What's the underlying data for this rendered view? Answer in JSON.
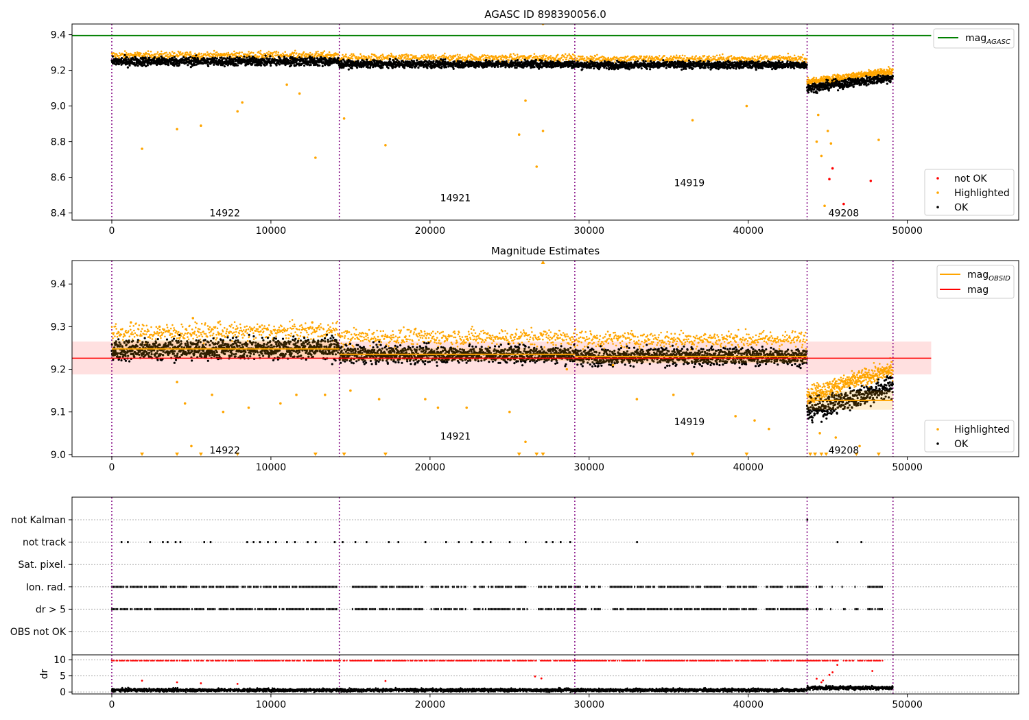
{
  "chart_data": [
    {
      "type": "scatter",
      "title": "AGASC ID 898390056.0",
      "xlim": [
        -2500,
        57000
      ],
      "ylim": [
        8.36,
        9.46
      ],
      "xticks": [
        0,
        10000,
        20000,
        30000,
        40000,
        50000
      ],
      "xtick_labels": [
        "0",
        "10000",
        "20000",
        "30000",
        "40000",
        "50000"
      ],
      "yticks": [
        8.4,
        8.6,
        8.8,
        9.0,
        9.2,
        9.4
      ],
      "ytick_labels": [
        "8.4",
        "8.6",
        "8.8",
        "9.0",
        "9.2",
        "9.4"
      ],
      "obsid_boundaries": [
        0,
        14300,
        29100,
        43700,
        49100
      ],
      "obsid_labels": [
        {
          "text": "14922",
          "x": 7100,
          "y": 8.4
        },
        {
          "text": "14921",
          "x": 21600,
          "y": 8.485
        },
        {
          "text": "14919",
          "x": 36300,
          "y": 8.57
        },
        {
          "text": "49208",
          "x": 46000,
          "y": 8.4
        }
      ],
      "lines": [
        {
          "name": "mag_AGASC",
          "y": 9.395,
          "x": [
            -2500,
            51500
          ],
          "color": "#008000"
        }
      ],
      "series": [
        {
          "name": "OK",
          "color": "#000000",
          "segments": [
            {
              "x": [
                0,
                14300
              ],
              "y": [
                9.25,
                9.25
              ],
              "spread": 0.025
            },
            {
              "x": [
                14300,
                29100
              ],
              "y": [
                9.235,
                9.235
              ],
              "spread": 0.02
            },
            {
              "x": [
                29100,
                43700
              ],
              "y": [
                9.23,
                9.23
              ],
              "spread": 0.02
            },
            {
              "x": [
                43700,
                49100
              ],
              "y": [
                9.1,
                9.16
              ],
              "spread": 0.025
            }
          ]
        },
        {
          "name": "Highlighted",
          "color": "#FFA500",
          "points": [
            [
              1900,
              8.76
            ],
            [
              4100,
              8.87
            ],
            [
              5600,
              8.89
            ],
            [
              7900,
              8.97
            ],
            [
              12800,
              8.71
            ],
            [
              14600,
              8.93
            ],
            [
              17200,
              8.78
            ],
            [
              25600,
              8.84
            ],
            [
              26700,
              8.66
            ],
            [
              27100,
              8.86
            ],
            [
              27100,
              9.46
            ],
            [
              36500,
              8.92
            ],
            [
              39900,
              9.0
            ],
            [
              44800,
              8.44
            ],
            [
              48200,
              8.81
            ],
            [
              44300,
              8.8
            ],
            [
              44600,
              8.72
            ],
            [
              45000,
              8.86
            ],
            [
              44400,
              8.95
            ],
            [
              45200,
              8.79
            ],
            [
              8200,
              9.02
            ],
            [
              11000,
              9.12
            ],
            [
              11800,
              9.07
            ],
            [
              26000,
              9.03
            ]
          ]
        },
        {
          "name": "not OK",
          "color": "#FF0000",
          "points": [
            [
              45300,
              8.65
            ],
            [
              45100,
              8.59
            ],
            [
              46000,
              8.45
            ],
            [
              47700,
              8.58
            ]
          ]
        }
      ],
      "legend": {
        "placement": "right",
        "entries": [
          "mag_AGASC",
          "not OK",
          "Highlighted",
          "OK"
        ]
      }
    },
    {
      "type": "scatter",
      "title": "Magnitude Estimates",
      "xlim": [
        -2500,
        57000
      ],
      "ylim": [
        8.995,
        9.455
      ],
      "xticks": [
        0,
        10000,
        20000,
        30000,
        40000,
        50000
      ],
      "xtick_labels": [
        "0",
        "10000",
        "20000",
        "30000",
        "40000",
        "50000"
      ],
      "yticks": [
        9.0,
        9.1,
        9.2,
        9.3,
        9.4
      ],
      "ytick_labels": [
        "9.0",
        "9.1",
        "9.2",
        "9.3",
        "9.4"
      ],
      "obsid_boundaries": [
        0,
        14300,
        29100,
        43700,
        49100
      ],
      "obsid_labels": [
        {
          "text": "14922",
          "x": 7100,
          "y": 9.01
        },
        {
          "text": "14921",
          "x": 21600,
          "y": 9.043
        },
        {
          "text": "14919",
          "x": 36300,
          "y": 9.077
        },
        {
          "text": "49208",
          "x": 46000,
          "y": 9.01
        }
      ],
      "bands": [
        {
          "name": "mag",
          "y": 9.226,
          "low": 9.188,
          "high": 9.265,
          "x": [
            -2500,
            51500
          ],
          "color": "#FF0000"
        }
      ],
      "obsid_mags": [
        {
          "x": [
            0,
            14300
          ],
          "y": 9.248,
          "low": 9.228,
          "high": 9.268
        },
        {
          "x": [
            14300,
            29100
          ],
          "y": 9.235,
          "low": 9.22,
          "high": 9.25
        },
        {
          "x": [
            29100,
            43700
          ],
          "y": 9.23,
          "low": 9.215,
          "high": 9.245
        },
        {
          "x": [
            43700,
            49100
          ],
          "y": 9.127,
          "low": 9.105,
          "high": 9.15
        }
      ],
      "series": [
        {
          "name": "OK",
          "color": "#000000",
          "segments": [
            {
              "x": [
                0,
                14300
              ],
              "y": [
                9.245,
                9.25
              ],
              "spread": 0.025
            },
            {
              "x": [
                14300,
                29100
              ],
              "y": [
                9.235,
                9.235
              ],
              "spread": 0.02
            },
            {
              "x": [
                29100,
                43700
              ],
              "y": [
                9.23,
                9.23
              ],
              "spread": 0.02
            },
            {
              "x": [
                43700,
                49100
              ],
              "y": [
                9.1,
                9.16
              ],
              "spread": 0.025
            }
          ]
        },
        {
          "name": "Highlighted",
          "color": "#FFA500",
          "points": [
            [
              1200,
              9.31
            ],
            [
              3000,
              9.3
            ],
            [
              5100,
              9.32
            ],
            [
              6700,
              9.31
            ],
            [
              9300,
              9.3
            ],
            [
              12600,
              9.31
            ],
            [
              4100,
              9.17
            ],
            [
              4600,
              9.12
            ],
            [
              5000,
              9.02
            ],
            [
              6300,
              9.14
            ],
            [
              7000,
              9.1
            ],
            [
              8600,
              9.11
            ],
            [
              10600,
              9.12
            ],
            [
              11600,
              9.14
            ],
            [
              13400,
              9.14
            ],
            [
              15000,
              9.15
            ],
            [
              16800,
              9.13
            ],
            [
              19700,
              9.13
            ],
            [
              20500,
              9.11
            ],
            [
              22300,
              9.11
            ],
            [
              25000,
              9.1
            ],
            [
              26000,
              9.03
            ],
            [
              28600,
              9.2
            ],
            [
              31500,
              9.21
            ],
            [
              33000,
              9.13
            ],
            [
              35300,
              9.14
            ],
            [
              39200,
              9.09
            ],
            [
              40400,
              9.08
            ],
            [
              41300,
              9.06
            ],
            [
              44500,
              9.05
            ],
            [
              45500,
              9.04
            ],
            [
              47000,
              9.02
            ],
            [
              27100,
              9.45
            ]
          ]
        }
      ],
      "below_axis_markers": [
        1900,
        4100,
        5600,
        7900,
        12800,
        14600,
        17200,
        25600,
        26700,
        27100,
        36500,
        39900,
        43900,
        44200,
        44600,
        44900,
        46800,
        48200
      ],
      "legend": {
        "placement": "right",
        "entries": [
          "mag_OBSID",
          "mag",
          "Highlighted",
          "OK"
        ]
      }
    },
    {
      "type": "scatter",
      "title": "",
      "xlim": [
        -2500,
        57000
      ],
      "categories": [
        "not Kalman",
        "not track",
        "Sat. pixel.",
        "Ion. rad.",
        "dr > 5",
        "OBS not OK"
      ],
      "obsid_boundaries": [
        0,
        14300,
        29100,
        43700,
        49100
      ],
      "flags": {
        "not Kalman": [
          43700
        ],
        "not track": [
          600,
          1000,
          2400,
          3200,
          3500,
          4000,
          4300,
          5800,
          6200,
          8500,
          8900,
          9300,
          9800,
          10300,
          11000,
          11500,
          12300,
          12800,
          14000,
          14500,
          15300,
          16000,
          17400,
          18000,
          19700,
          21000,
          21800,
          22600,
          23300,
          23800,
          25000,
          26000,
          27300,
          27700,
          28200,
          28800,
          33000,
          45600,
          47100
        ],
        "Sat. pixel.": [],
        "Ion. rad.": {
          "from": 0,
          "to": 48500,
          "gaps": [
            14400,
            14800,
            19800,
            22500,
            26500,
            31000,
            40800,
            44000,
            44900,
            45600,
            46400,
            47200
          ]
        },
        "dr > 5": {
          "from": 0,
          "to": 48500,
          "gaps": [
            14400,
            14800,
            19800,
            22500,
            26500,
            31000,
            40800,
            44000,
            44900,
            45600,
            46400,
            47200
          ]
        },
        "OBS not OK": []
      }
    },
    {
      "type": "scatter",
      "title": "",
      "xlim": [
        -2500,
        57000
      ],
      "ylim": [
        -0.6,
        11.5
      ],
      "xticks": [
        0,
        10000,
        20000,
        30000,
        40000,
        50000
      ],
      "xtick_labels": [
        "0",
        "10000",
        "20000",
        "30000",
        "40000",
        "50000"
      ],
      "yticks": [
        0,
        5,
        10
      ],
      "ytick_labels": [
        "0",
        "5",
        "10"
      ],
      "ylabel": "dr",
      "obsid_boundaries": [
        0,
        14300,
        29100,
        43700,
        49100
      ],
      "series": [
        {
          "name": "OK",
          "color": "#000000",
          "segments": [
            {
              "x": [
                0,
                43700
              ],
              "y": [
                0.6,
                0.6
              ],
              "spread": 0.5
            },
            {
              "x": [
                43700,
                49100
              ],
              "y": [
                1.3,
                1.3
              ],
              "spread": 0.6
            }
          ]
        },
        {
          "name": "not OK",
          "color": "#FF0000",
          "capped": {
            "y": 9.7,
            "from": 0,
            "to": 48500
          },
          "points": [
            [
              1900,
              3.5
            ],
            [
              4100,
              3.0
            ],
            [
              5600,
              2.7
            ],
            [
              7900,
              2.5
            ],
            [
              17200,
              3.4
            ],
            [
              26600,
              4.8
            ],
            [
              27000,
              4.2
            ],
            [
              44300,
              4.1
            ],
            [
              44700,
              3.6
            ],
            [
              45100,
              5.3
            ],
            [
              45300,
              6.1
            ],
            [
              45600,
              8.4
            ],
            [
              47800,
              6.5
            ],
            [
              44600,
              3.0
            ]
          ]
        }
      ]
    }
  ]
}
